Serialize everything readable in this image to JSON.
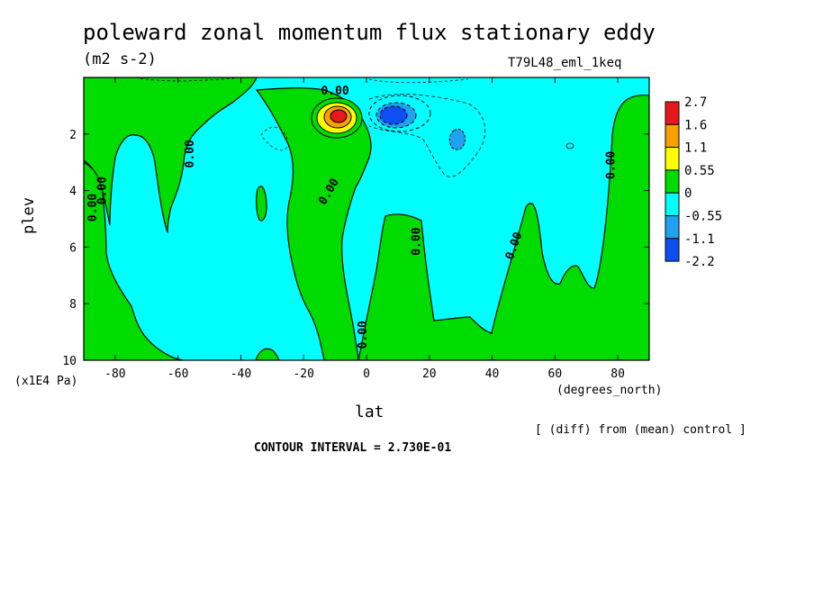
{
  "chart_data": {
    "type": "heatmap",
    "title": "poleward zonal momentum flux stationary eddy",
    "units": "(m2 s-2)",
    "run_name": "T79L48_eml_1keq",
    "xlabel": "lat",
    "x_unit": "(degrees_north)",
    "ylabel": "plev",
    "y_unit": "(x1E4 Pa)",
    "xlim": [
      -90,
      90
    ],
    "ylim": [
      10,
      0
    ],
    "x_ticks": [
      -80,
      -60,
      -40,
      -20,
      0,
      20,
      40,
      60,
      80
    ],
    "y_ticks": [
      2,
      4,
      6,
      8,
      10
    ],
    "color_levels": [
      {
        "label": "2.7",
        "color": "#e8191b"
      },
      {
        "label": "1.6",
        "color": "#f5a100"
      },
      {
        "label": "1.1",
        "color": "#ffff00"
      },
      {
        "label": "0.55",
        "color": "#00dc00"
      },
      {
        "label": "0",
        "color": "#00ffff"
      },
      {
        "label": "-0.55",
        "color": "#1fa3f0"
      },
      {
        "label": "-1.1",
        "color": "#0d4ff0"
      },
      {
        "label": "-2.2",
        "color": ""
      }
    ],
    "contour_labels": [
      {
        "text": "0.00",
        "lat": -10,
        "plev": 0.6,
        "rot": 0
      },
      {
        "text": "0.00",
        "lat": -55,
        "plev": 2.7,
        "rot": -90
      },
      {
        "text": "0.00",
        "lat": -83,
        "plev": 4.0,
        "rot": -90
      },
      {
        "text": "0.00",
        "lat": -86,
        "plev": 4.6,
        "rot": -90
      },
      {
        "text": "0.00",
        "lat": -11,
        "plev": 4.1,
        "rot": -60
      },
      {
        "text": "0.00",
        "lat": 17,
        "plev": 5.8,
        "rot": -90
      },
      {
        "text": "0.00",
        "lat": 48,
        "plev": 6.0,
        "rot": -70
      },
      {
        "text": "0.00",
        "lat": 79,
        "plev": 3.1,
        "rot": -90
      },
      {
        "text": "0.00",
        "lat": 0,
        "plev": 9.1,
        "rot": -90
      }
    ],
    "features": [
      {
        "name": "positive maximum",
        "lat": -9,
        "plev": 1.5,
        "max": 2.7
      },
      {
        "name": "negative minimum",
        "lat": 8,
        "plev": 1.3,
        "min": -2.2
      },
      {
        "name": "secondary negative",
        "lat": 30,
        "plev": 2.2
      }
    ],
    "contour_interval_text": "CONTOUR INTERVAL = 2.730E-01",
    "diff_note": "[ (diff) from (mean) control ]"
  }
}
